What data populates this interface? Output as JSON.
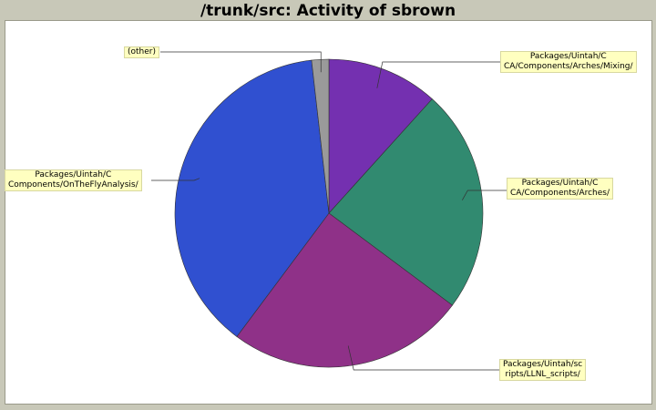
{
  "header": {
    "title": "/trunk/src: Activity of sbrown"
  },
  "chart_data": {
    "type": "pie",
    "title": "/trunk/src: Activity of sbrown",
    "slices": [
      {
        "label_lines": [
          "Packages/Uintah/C",
          "CA/Components/Arches/Mixing/"
        ],
        "value": 11.7,
        "color": "#7430b0"
      },
      {
        "label_lines": [
          "Packages/Uintah/C",
          "CA/Components/Arches/"
        ],
        "value": 23.5,
        "color": "#318a70"
      },
      {
        "label_lines": [
          "Packages/Uintah/sc",
          "ripts/LLNL_scripts/"
        ],
        "value": 25.0,
        "color": "#8f3188"
      },
      {
        "label_lines": [
          "Packages/Uintah/C",
          "Components/OnTheFlyAnalysis/"
        ],
        "value": 38.0,
        "color": "#3050d0"
      },
      {
        "label_lines": [
          "(other)"
        ],
        "value": 1.8,
        "color": "#9a9a9a"
      }
    ]
  }
}
